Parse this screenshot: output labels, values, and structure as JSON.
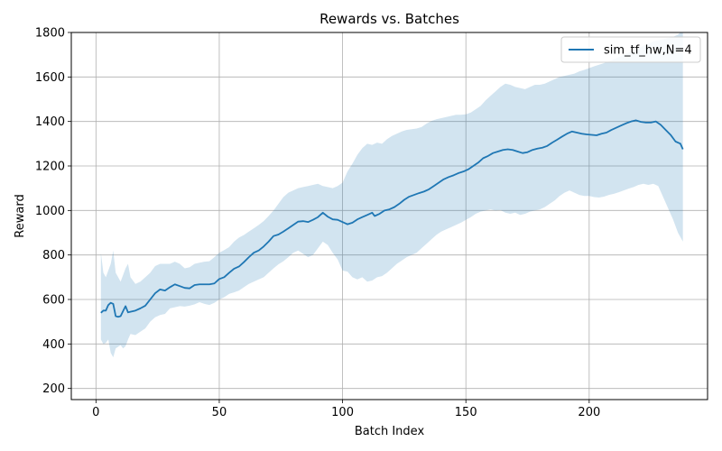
{
  "chart_data": {
    "type": "line",
    "title": "Rewards vs. Batches",
    "xlabel": "Batch Index",
    "ylabel": "Reward",
    "xlim": [
      -10,
      248
    ],
    "ylim": [
      150,
      1800
    ],
    "xticks": [
      0,
      50,
      100,
      150,
      200
    ],
    "yticks": [
      200,
      400,
      600,
      800,
      1000,
      1200,
      1400,
      1600,
      1800
    ],
    "grid": true,
    "legend_position": "top-right",
    "colors": {
      "line": "#1f77b4",
      "band": "#1f77b4"
    },
    "band_opacity": 0.2,
    "series": [
      {
        "name": "sim_tf_hw,N=4",
        "points": [
          [
            2,
            540
          ],
          [
            3,
            550
          ],
          [
            4,
            550
          ],
          [
            5,
            575
          ],
          [
            6,
            585
          ],
          [
            7,
            580
          ],
          [
            8,
            525
          ],
          [
            9,
            522
          ],
          [
            10,
            525
          ],
          [
            11,
            548
          ],
          [
            12,
            570
          ],
          [
            13,
            542
          ],
          [
            14,
            545
          ],
          [
            16,
            550
          ],
          [
            18,
            560
          ],
          [
            20,
            572
          ],
          [
            22,
            600
          ],
          [
            24,
            628
          ],
          [
            26,
            645
          ],
          [
            28,
            640
          ],
          [
            30,
            655
          ],
          [
            32,
            668
          ],
          [
            34,
            660
          ],
          [
            36,
            652
          ],
          [
            38,
            650
          ],
          [
            40,
            665
          ],
          [
            42,
            668
          ],
          [
            44,
            668
          ],
          [
            46,
            668
          ],
          [
            48,
            672
          ],
          [
            50,
            692
          ],
          [
            52,
            700
          ],
          [
            54,
            720
          ],
          [
            56,
            738
          ],
          [
            58,
            748
          ],
          [
            60,
            768
          ],
          [
            62,
            790
          ],
          [
            64,
            810
          ],
          [
            66,
            820
          ],
          [
            68,
            838
          ],
          [
            70,
            860
          ],
          [
            72,
            885
          ],
          [
            74,
            892
          ],
          [
            76,
            905
          ],
          [
            78,
            920
          ],
          [
            80,
            935
          ],
          [
            82,
            950
          ],
          [
            84,
            952
          ],
          [
            86,
            948
          ],
          [
            88,
            958
          ],
          [
            90,
            970
          ],
          [
            92,
            990
          ],
          [
            94,
            972
          ],
          [
            96,
            960
          ],
          [
            98,
            958
          ],
          [
            100,
            948
          ],
          [
            102,
            938
          ],
          [
            104,
            945
          ],
          [
            106,
            960
          ],
          [
            108,
            970
          ],
          [
            110,
            980
          ],
          [
            112,
            990
          ],
          [
            113,
            975
          ],
          [
            115,
            985
          ],
          [
            117,
            1000
          ],
          [
            119,
            1005
          ],
          [
            121,
            1015
          ],
          [
            123,
            1030
          ],
          [
            125,
            1048
          ],
          [
            127,
            1062
          ],
          [
            129,
            1070
          ],
          [
            131,
            1078
          ],
          [
            133,
            1085
          ],
          [
            135,
            1095
          ],
          [
            137,
            1110
          ],
          [
            139,
            1125
          ],
          [
            141,
            1140
          ],
          [
            143,
            1150
          ],
          [
            145,
            1158
          ],
          [
            147,
            1168
          ],
          [
            149,
            1175
          ],
          [
            151,
            1185
          ],
          [
            153,
            1200
          ],
          [
            155,
            1215
          ],
          [
            157,
            1235
          ],
          [
            159,
            1245
          ],
          [
            161,
            1258
          ],
          [
            163,
            1265
          ],
          [
            165,
            1272
          ],
          [
            167,
            1275
          ],
          [
            169,
            1272
          ],
          [
            171,
            1265
          ],
          [
            173,
            1258
          ],
          [
            175,
            1262
          ],
          [
            177,
            1272
          ],
          [
            179,
            1278
          ],
          [
            181,
            1282
          ],
          [
            183,
            1290
          ],
          [
            185,
            1305
          ],
          [
            187,
            1318
          ],
          [
            189,
            1332
          ],
          [
            191,
            1345
          ],
          [
            193,
            1355
          ],
          [
            195,
            1350
          ],
          [
            197,
            1345
          ],
          [
            199,
            1342
          ],
          [
            201,
            1340
          ],
          [
            203,
            1338
          ],
          [
            205,
            1345
          ],
          [
            207,
            1350
          ],
          [
            209,
            1362
          ],
          [
            211,
            1372
          ],
          [
            213,
            1382
          ],
          [
            215,
            1392
          ],
          [
            217,
            1400
          ],
          [
            219,
            1405
          ],
          [
            221,
            1398
          ],
          [
            223,
            1395
          ],
          [
            225,
            1395
          ],
          [
            227,
            1400
          ],
          [
            229,
            1385
          ],
          [
            231,
            1362
          ],
          [
            233,
            1340
          ],
          [
            235,
            1310
          ],
          [
            237,
            1300
          ],
          [
            238,
            1275
          ]
        ]
      }
    ],
    "band_upper": [
      [
        2,
        810
      ],
      [
        3,
        720
      ],
      [
        4,
        700
      ],
      [
        6,
        760
      ],
      [
        7,
        820
      ],
      [
        8,
        720
      ],
      [
        10,
        680
      ],
      [
        12,
        740
      ],
      [
        13,
        760
      ],
      [
        14,
        700
      ],
      [
        16,
        670
      ],
      [
        18,
        680
      ],
      [
        20,
        700
      ],
      [
        22,
        720
      ],
      [
        24,
        750
      ],
      [
        26,
        760
      ],
      [
        28,
        760
      ],
      [
        30,
        760
      ],
      [
        32,
        770
      ],
      [
        34,
        760
      ],
      [
        36,
        740
      ],
      [
        38,
        745
      ],
      [
        40,
        760
      ],
      [
        42,
        765
      ],
      [
        44,
        770
      ],
      [
        46,
        772
      ],
      [
        48,
        790
      ],
      [
        50,
        810
      ],
      [
        52,
        822
      ],
      [
        54,
        835
      ],
      [
        56,
        860
      ],
      [
        58,
        878
      ],
      [
        60,
        890
      ],
      [
        62,
        905
      ],
      [
        64,
        920
      ],
      [
        66,
        935
      ],
      [
        68,
        952
      ],
      [
        70,
        975
      ],
      [
        72,
        1000
      ],
      [
        74,
        1030
      ],
      [
        76,
        1060
      ],
      [
        78,
        1080
      ],
      [
        80,
        1090
      ],
      [
        82,
        1100
      ],
      [
        84,
        1105
      ],
      [
        86,
        1110
      ],
      [
        88,
        1115
      ],
      [
        90,
        1120
      ],
      [
        92,
        1110
      ],
      [
        94,
        1105
      ],
      [
        96,
        1100
      ],
      [
        98,
        1110
      ],
      [
        100,
        1125
      ],
      [
        102,
        1175
      ],
      [
        104,
        1210
      ],
      [
        106,
        1250
      ],
      [
        108,
        1280
      ],
      [
        110,
        1300
      ],
      [
        112,
        1295
      ],
      [
        114,
        1305
      ],
      [
        116,
        1300
      ],
      [
        118,
        1320
      ],
      [
        120,
        1335
      ],
      [
        122,
        1345
      ],
      [
        124,
        1355
      ],
      [
        126,
        1362
      ],
      [
        128,
        1365
      ],
      [
        130,
        1368
      ],
      [
        132,
        1375
      ],
      [
        134,
        1390
      ],
      [
        136,
        1402
      ],
      [
        138,
        1410
      ],
      [
        140,
        1415
      ],
      [
        142,
        1420
      ],
      [
        144,
        1425
      ],
      [
        146,
        1430
      ],
      [
        148,
        1430
      ],
      [
        150,
        1432
      ],
      [
        152,
        1440
      ],
      [
        154,
        1455
      ],
      [
        156,
        1470
      ],
      [
        158,
        1495
      ],
      [
        160,
        1515
      ],
      [
        162,
        1535
      ],
      [
        164,
        1555
      ],
      [
        166,
        1570
      ],
      [
        168,
        1565
      ],
      [
        170,
        1555
      ],
      [
        172,
        1550
      ],
      [
        174,
        1545
      ],
      [
        176,
        1555
      ],
      [
        178,
        1565
      ],
      [
        180,
        1565
      ],
      [
        182,
        1570
      ],
      [
        184,
        1580
      ],
      [
        186,
        1590
      ],
      [
        188,
        1600
      ],
      [
        190,
        1605
      ],
      [
        192,
        1610
      ],
      [
        194,
        1615
      ],
      [
        196,
        1625
      ],
      [
        198,
        1632
      ],
      [
        200,
        1640
      ],
      [
        202,
        1648
      ],
      [
        204,
        1655
      ],
      [
        206,
        1662
      ],
      [
        208,
        1670
      ],
      [
        210,
        1680
      ],
      [
        212,
        1690
      ],
      [
        214,
        1700
      ],
      [
        216,
        1710
      ],
      [
        218,
        1720
      ],
      [
        220,
        1730
      ],
      [
        222,
        1740
      ],
      [
        224,
        1750
      ],
      [
        226,
        1760
      ],
      [
        228,
        1765
      ],
      [
        230,
        1770
      ],
      [
        232,
        1775
      ],
      [
        234,
        1780
      ],
      [
        236,
        1790
      ],
      [
        237,
        1800
      ],
      [
        238,
        1800
      ]
    ],
    "band_lower": [
      [
        2,
        420
      ],
      [
        3,
        400
      ],
      [
        4,
        405
      ],
      [
        5,
        420
      ],
      [
        6,
        360
      ],
      [
        7,
        340
      ],
      [
        8,
        380
      ],
      [
        10,
        395
      ],
      [
        11,
        380
      ],
      [
        12,
        390
      ],
      [
        13,
        420
      ],
      [
        14,
        445
      ],
      [
        16,
        440
      ],
      [
        18,
        455
      ],
      [
        20,
        470
      ],
      [
        22,
        500
      ],
      [
        24,
        520
      ],
      [
        26,
        530
      ],
      [
        28,
        535
      ],
      [
        30,
        560
      ],
      [
        32,
        565
      ],
      [
        34,
        570
      ],
      [
        36,
        568
      ],
      [
        38,
        572
      ],
      [
        40,
        578
      ],
      [
        42,
        588
      ],
      [
        44,
        580
      ],
      [
        46,
        575
      ],
      [
        48,
        585
      ],
      [
        50,
        600
      ],
      [
        52,
        610
      ],
      [
        54,
        625
      ],
      [
        56,
        632
      ],
      [
        58,
        640
      ],
      [
        60,
        655
      ],
      [
        62,
        670
      ],
      [
        64,
        680
      ],
      [
        66,
        690
      ],
      [
        68,
        700
      ],
      [
        70,
        720
      ],
      [
        72,
        740
      ],
      [
        74,
        758
      ],
      [
        76,
        772
      ],
      [
        78,
        790
      ],
      [
        80,
        810
      ],
      [
        82,
        820
      ],
      [
        84,
        805
      ],
      [
        86,
        790
      ],
      [
        88,
        800
      ],
      [
        90,
        830
      ],
      [
        92,
        860
      ],
      [
        94,
        845
      ],
      [
        96,
        810
      ],
      [
        98,
        780
      ],
      [
        100,
        730
      ],
      [
        102,
        725
      ],
      [
        104,
        700
      ],
      [
        106,
        690
      ],
      [
        108,
        700
      ],
      [
        110,
        680
      ],
      [
        112,
        685
      ],
      [
        114,
        700
      ],
      [
        116,
        705
      ],
      [
        118,
        720
      ],
      [
        120,
        740
      ],
      [
        122,
        760
      ],
      [
        124,
        775
      ],
      [
        126,
        790
      ],
      [
        128,
        800
      ],
      [
        130,
        810
      ],
      [
        132,
        830
      ],
      [
        134,
        850
      ],
      [
        136,
        870
      ],
      [
        138,
        890
      ],
      [
        140,
        905
      ],
      [
        142,
        915
      ],
      [
        144,
        925
      ],
      [
        146,
        935
      ],
      [
        148,
        945
      ],
      [
        150,
        958
      ],
      [
        152,
        970
      ],
      [
        154,
        985
      ],
      [
        156,
        995
      ],
      [
        158,
        1000
      ],
      [
        160,
        1005
      ],
      [
        162,
        1000
      ],
      [
        164,
        1002
      ],
      [
        166,
        990
      ],
      [
        168,
        985
      ],
      [
        170,
        990
      ],
      [
        172,
        980
      ],
      [
        174,
        985
      ],
      [
        176,
        995
      ],
      [
        178,
        1000
      ],
      [
        180,
        1005
      ],
      [
        182,
        1015
      ],
      [
        184,
        1030
      ],
      [
        186,
        1045
      ],
      [
        188,
        1065
      ],
      [
        190,
        1080
      ],
      [
        192,
        1090
      ],
      [
        194,
        1080
      ],
      [
        196,
        1070
      ],
      [
        198,
        1065
      ],
      [
        200,
        1065
      ],
      [
        202,
        1060
      ],
      [
        204,
        1058
      ],
      [
        206,
        1062
      ],
      [
        208,
        1070
      ],
      [
        210,
        1075
      ],
      [
        212,
        1082
      ],
      [
        214,
        1090
      ],
      [
        216,
        1098
      ],
      [
        218,
        1105
      ],
      [
        220,
        1115
      ],
      [
        222,
        1120
      ],
      [
        224,
        1115
      ],
      [
        226,
        1120
      ],
      [
        228,
        1110
      ],
      [
        230,
        1060
      ],
      [
        232,
        1010
      ],
      [
        234,
        960
      ],
      [
        236,
        900
      ],
      [
        237,
        880
      ],
      [
        238,
        860
      ]
    ]
  }
}
